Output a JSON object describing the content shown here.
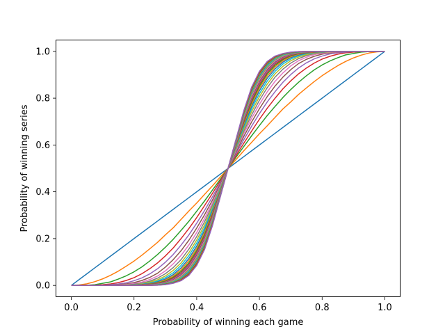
{
  "chart_data": {
    "type": "line",
    "title": "",
    "xlabel": "Probability of winning each game",
    "ylabel": "Probability of winning series",
    "xlim": [
      -0.05,
      1.05
    ],
    "ylim": [
      -0.05,
      1.05
    ],
    "x_ticks": [
      "0.0",
      "0.2",
      "0.4",
      "0.6",
      "0.8",
      "1.0"
    ],
    "y_ticks": [
      "0.0",
      "0.2",
      "0.4",
      "0.6",
      "0.8",
      "1.0"
    ],
    "grid": false,
    "legend": "none",
    "x": [
      0,
      0.025,
      0.05,
      0.075,
      0.1,
      0.125,
      0.15,
      0.175,
      0.2,
      0.225,
      0.25,
      0.275,
      0.3,
      0.325,
      0.35,
      0.375,
      0.4,
      0.425,
      0.45,
      0.475,
      0.5,
      0.525,
      0.55,
      0.575,
      0.6,
      0.625,
      0.65,
      0.675,
      0.7,
      0.725,
      0.75,
      0.775,
      0.8,
      0.825,
      0.85,
      0.875,
      0.9,
      0.925,
      0.95,
      0.975,
      1
    ],
    "series": [
      {
        "color": "#1f77b4",
        "values": [
          0,
          0.025,
          0.05,
          0.075,
          0.1,
          0.125,
          0.15,
          0.175,
          0.2,
          0.225,
          0.25,
          0.275,
          0.3,
          0.325,
          0.35,
          0.375,
          0.4,
          0.425,
          0.45,
          0.475,
          0.5,
          0.525,
          0.55,
          0.575,
          0.6,
          0.625,
          0.65,
          0.675,
          0.7,
          0.725,
          0.75,
          0.775,
          0.8,
          0.825,
          0.85,
          0.875,
          0.9,
          0.925,
          0.95,
          0.975,
          1
        ]
      },
      {
        "color": "#ff7f0e",
        "values": [
          0,
          0.002,
          0.007,
          0.016,
          0.028,
          0.043,
          0.061,
          0.082,
          0.104,
          0.129,
          0.156,
          0.184,
          0.216,
          0.246,
          0.282,
          0.318,
          0.352,
          0.389,
          0.425,
          0.463,
          0.5,
          0.537,
          0.575,
          0.611,
          0.648,
          0.682,
          0.718,
          0.754,
          0.784,
          0.816,
          0.844,
          0.871,
          0.896,
          0.918,
          0.939,
          0.957,
          0.972,
          0.984,
          0.993,
          0.998,
          1
        ]
      },
      {
        "color": "#2ca02c",
        "values": [
          0,
          0,
          0.001,
          0.003,
          0.009,
          0.015,
          0.027,
          0.041,
          0.058,
          0.079,
          0.104,
          0.132,
          0.163,
          0.197,
          0.235,
          0.274,
          0.317,
          0.361,
          0.407,
          0.453,
          0.5,
          0.547,
          0.593,
          0.639,
          0.683,
          0.726,
          0.765,
          0.803,
          0.837,
          0.868,
          0.896,
          0.921,
          0.942,
          0.959,
          0.973,
          0.985,
          0.991,
          0.997,
          0.999,
          1,
          1
        ]
      },
      {
        "color": "#d62728",
        "values": [
          0,
          0,
          0,
          0.001,
          0.003,
          0.006,
          0.012,
          0.021,
          0.033,
          0.05,
          0.071,
          0.096,
          0.126,
          0.16,
          0.2,
          0.243,
          0.29,
          0.341,
          0.393,
          0.446,
          0.5,
          0.554,
          0.607,
          0.659,
          0.71,
          0.757,
          0.8,
          0.84,
          0.874,
          0.904,
          0.929,
          0.95,
          0.967,
          0.979,
          0.988,
          0.994,
          0.997,
          0.999,
          1,
          1,
          1
        ]
      },
      {
        "color": "#9467bd",
        "values": [
          0,
          0,
          0,
          0,
          0.001,
          0.003,
          0.006,
          0.011,
          0.02,
          0.032,
          0.049,
          0.071,
          0.099,
          0.132,
          0.172,
          0.216,
          0.266,
          0.32,
          0.378,
          0.438,
          0.5,
          0.562,
          0.622,
          0.68,
          0.734,
          0.784,
          0.828,
          0.868,
          0.901,
          0.929,
          0.951,
          0.968,
          0.98,
          0.989,
          0.994,
          0.997,
          0.999,
          1,
          1,
          1,
          1
        ]
      },
      {
        "color": "#8c564b",
        "values": [
          0,
          0,
          0,
          0,
          0,
          0.001,
          0.003,
          0.006,
          0.012,
          0.021,
          0.034,
          0.052,
          0.078,
          0.11,
          0.148,
          0.193,
          0.245,
          0.302,
          0.364,
          0.431,
          0.5,
          0.569,
          0.636,
          0.698,
          0.755,
          0.807,
          0.852,
          0.89,
          0.922,
          0.948,
          0.966,
          0.979,
          0.988,
          0.994,
          0.997,
          0.999,
          1,
          1,
          1,
          1,
          1
        ]
      },
      {
        "color": "#e377c2",
        "values": [
          0,
          0,
          0,
          0,
          0,
          0.001,
          0.002,
          0.004,
          0.008,
          0.014,
          0.025,
          0.04,
          0.062,
          0.092,
          0.128,
          0.173,
          0.226,
          0.286,
          0.352,
          0.425,
          0.5,
          0.575,
          0.648,
          0.714,
          0.774,
          0.827,
          0.872,
          0.908,
          0.938,
          0.96,
          0.975,
          0.986,
          0.992,
          0.996,
          0.998,
          0.999,
          1,
          1,
          1,
          1,
          1
        ]
      },
      {
        "color": "#7f7f7f",
        "values": [
          0,
          0,
          0,
          0,
          0,
          0,
          0.001,
          0.002,
          0.005,
          0.01,
          0.018,
          0.031,
          0.05,
          0.076,
          0.11,
          0.155,
          0.209,
          0.272,
          0.342,
          0.419,
          0.5,
          0.581,
          0.658,
          0.728,
          0.791,
          0.845,
          0.89,
          0.924,
          0.95,
          0.969,
          0.982,
          0.99,
          0.995,
          0.998,
          0.999,
          1,
          1,
          1,
          1,
          1,
          1
        ]
      },
      {
        "color": "#bcbd22",
        "values": [
          0,
          0,
          0,
          0,
          0,
          0,
          0.001,
          0.002,
          0.003,
          0.007,
          0.014,
          0.024,
          0.04,
          0.064,
          0.096,
          0.14,
          0.194,
          0.258,
          0.333,
          0.414,
          0.5,
          0.586,
          0.667,
          0.742,
          0.806,
          0.86,
          0.904,
          0.936,
          0.96,
          0.976,
          0.986,
          0.993,
          0.997,
          0.998,
          0.999,
          1,
          1,
          1,
          1,
          1,
          1
        ]
      },
      {
        "color": "#17becf",
        "values": [
          0,
          0,
          0,
          0,
          0,
          0,
          0,
          0.001,
          0.002,
          0.005,
          0.01,
          0.019,
          0.033,
          0.054,
          0.085,
          0.127,
          0.181,
          0.246,
          0.325,
          0.41,
          0.5,
          0.59,
          0.675,
          0.754,
          0.819,
          0.873,
          0.915,
          0.946,
          0.967,
          0.981,
          0.99,
          0.995,
          0.998,
          0.999,
          1,
          1,
          1,
          1,
          1,
          1,
          1
        ]
      },
      {
        "color": "#1f77b4",
        "values": [
          0,
          0,
          0,
          0,
          0,
          0,
          0,
          0.001,
          0.002,
          0.004,
          0.008,
          0.015,
          0.027,
          0.046,
          0.075,
          0.115,
          0.168,
          0.235,
          0.317,
          0.406,
          0.5,
          0.594,
          0.683,
          0.765,
          0.832,
          0.885,
          0.925,
          0.954,
          0.973,
          0.985,
          0.992,
          0.996,
          0.998,
          0.999,
          1,
          1,
          1,
          1,
          1,
          1,
          1
        ]
      },
      {
        "color": "#ff7f0e",
        "values": [
          0,
          0,
          0,
          0,
          0,
          0,
          0,
          0,
          0.001,
          0.003,
          0.006,
          0.012,
          0.023,
          0.04,
          0.067,
          0.106,
          0.158,
          0.226,
          0.31,
          0.403,
          0.5,
          0.597,
          0.69,
          0.774,
          0.842,
          0.894,
          0.933,
          0.96,
          0.977,
          0.988,
          0.994,
          0.997,
          0.999,
          1,
          1,
          1,
          1,
          1,
          1,
          1,
          1
        ]
      },
      {
        "color": "#2ca02c",
        "values": [
          0,
          0,
          0,
          0,
          0,
          0,
          0,
          0,
          0.001,
          0.002,
          0.005,
          0.01,
          0.019,
          0.035,
          0.06,
          0.097,
          0.149,
          0.217,
          0.303,
          0.4,
          0.5,
          0.6,
          0.697,
          0.783,
          0.851,
          0.903,
          0.94,
          0.965,
          0.981,
          0.99,
          0.995,
          0.998,
          0.999,
          1,
          1,
          1,
          1,
          1,
          1,
          1,
          1
        ]
      },
      {
        "color": "#d62728",
        "values": [
          0,
          0,
          0,
          0,
          0,
          0,
          0,
          0,
          0.001,
          0.002,
          0.004,
          0.008,
          0.016,
          0.031,
          0.054,
          0.09,
          0.141,
          0.209,
          0.297,
          0.397,
          0.5,
          0.603,
          0.703,
          0.791,
          0.859,
          0.91,
          0.946,
          0.969,
          0.984,
          0.992,
          0.996,
          0.998,
          0.999,
          1,
          1,
          1,
          1,
          1,
          1,
          1,
          1
        ]
      },
      {
        "color": "#9467bd",
        "values": [
          0,
          0,
          0,
          0,
          0,
          0,
          0,
          0,
          0,
          0.001,
          0.003,
          0.007,
          0.014,
          0.027,
          0.049,
          0.084,
          0.134,
          0.203,
          0.292,
          0.394,
          0.5,
          0.606,
          0.708,
          0.797,
          0.866,
          0.916,
          0.951,
          0.973,
          0.986,
          0.993,
          0.997,
          0.999,
          1,
          1,
          1,
          1,
          1,
          1,
          1,
          1,
          1
        ]
      },
      {
        "color": "#8c564b",
        "values": [
          0,
          0,
          0,
          0,
          0,
          0,
          0,
          0,
          0,
          0.001,
          0.002,
          0.006,
          0.012,
          0.024,
          0.045,
          0.078,
          0.128,
          0.197,
          0.287,
          0.392,
          0.5,
          0.608,
          0.713,
          0.803,
          0.872,
          0.922,
          0.955,
          0.976,
          0.988,
          0.994,
          0.998,
          0.999,
          1,
          1,
          1,
          1,
          1,
          1,
          1,
          1,
          1
        ]
      },
      {
        "color": "#e377c2",
        "values": [
          0,
          0,
          0,
          0,
          0,
          0,
          0,
          0,
          0,
          0.001,
          0.002,
          0.005,
          0.01,
          0.021,
          0.041,
          0.073,
          0.122,
          0.191,
          0.283,
          0.39,
          0.5,
          0.61,
          0.717,
          0.809,
          0.878,
          0.927,
          0.959,
          0.979,
          0.99,
          0.995,
          0.998,
          0.999,
          1,
          1,
          1,
          1,
          1,
          1,
          1,
          1,
          1
        ]
      },
      {
        "color": "#7f7f7f",
        "values": [
          0,
          0,
          0,
          0,
          0,
          0,
          0,
          0,
          0,
          0.001,
          0.002,
          0.004,
          0.009,
          0.019,
          0.037,
          0.068,
          0.116,
          0.185,
          0.279,
          0.388,
          0.5,
          0.612,
          0.721,
          0.815,
          0.884,
          0.932,
          0.963,
          0.981,
          0.991,
          0.996,
          0.998,
          0.999,
          1,
          1,
          1,
          1,
          1,
          1,
          1,
          1,
          1
        ]
      },
      {
        "color": "#bcbd22",
        "values": [
          0,
          0,
          0,
          0,
          0,
          0,
          0,
          0,
          0,
          0,
          0.001,
          0.003,
          0.008,
          0.017,
          0.034,
          0.064,
          0.111,
          0.18,
          0.275,
          0.386,
          0.5,
          0.614,
          0.725,
          0.82,
          0.889,
          0.936,
          0.966,
          0.983,
          0.992,
          0.997,
          0.999,
          1,
          1,
          1,
          1,
          1,
          1,
          1,
          1,
          1,
          1
        ]
      },
      {
        "color": "#17becf",
        "values": [
          0,
          0,
          0,
          0,
          0,
          0,
          0,
          0,
          0,
          0,
          0.001,
          0.003,
          0.007,
          0.015,
          0.031,
          0.06,
          0.106,
          0.175,
          0.271,
          0.384,
          0.5,
          0.616,
          0.729,
          0.825,
          0.894,
          0.94,
          0.969,
          0.985,
          0.993,
          0.997,
          0.999,
          1,
          1,
          1,
          1,
          1,
          1,
          1,
          1,
          1,
          1
        ]
      },
      {
        "color": "#1f77b4",
        "values": [
          0,
          0,
          0,
          0,
          0,
          0,
          0,
          0,
          0,
          0,
          0.001,
          0.002,
          0.006,
          0.013,
          0.028,
          0.056,
          0.102,
          0.171,
          0.268,
          0.383,
          0.5,
          0.617,
          0.732,
          0.829,
          0.898,
          0.944,
          0.972,
          0.987,
          0.994,
          0.998,
          0.999,
          1,
          1,
          1,
          1,
          1,
          1,
          1,
          1,
          1,
          1
        ]
      },
      {
        "color": "#ff7f0e",
        "values": [
          0,
          0,
          0,
          0,
          0,
          0,
          0,
          0,
          0,
          0,
          0.001,
          0.002,
          0.005,
          0.012,
          0.026,
          0.052,
          0.097,
          0.166,
          0.264,
          0.381,
          0.5,
          0.619,
          0.736,
          0.834,
          0.903,
          0.948,
          0.974,
          0.988,
          0.995,
          0.998,
          0.999,
          1,
          1,
          1,
          1,
          1,
          1,
          1,
          1,
          1,
          1
        ]
      },
      {
        "color": "#2ca02c",
        "values": [
          0,
          0,
          0,
          0,
          0,
          0,
          0,
          0,
          0,
          0,
          0,
          0.002,
          0.005,
          0.011,
          0.024,
          0.049,
          0.093,
          0.162,
          0.261,
          0.38,
          0.5,
          0.62,
          0.739,
          0.838,
          0.907,
          0.951,
          0.976,
          0.989,
          0.995,
          0.998,
          1,
          1,
          1,
          1,
          1,
          1,
          1,
          1,
          1,
          1,
          1
        ]
      },
      {
        "color": "#d62728",
        "values": [
          0,
          0,
          0,
          0,
          0,
          0,
          0,
          0,
          0,
          0,
          0,
          0.001,
          0.004,
          0.01,
          0.022,
          0.046,
          0.089,
          0.157,
          0.258,
          0.378,
          0.5,
          0.622,
          0.742,
          0.843,
          0.911,
          0.954,
          0.978,
          0.99,
          0.996,
          0.999,
          1,
          1,
          1,
          1,
          1,
          1,
          1,
          1,
          1,
          1,
          1
        ]
      },
      {
        "color": "#9467bd",
        "values": [
          0,
          0,
          0,
          0,
          0,
          0,
          0,
          0,
          0,
          0,
          0,
          0.001,
          0.003,
          0.009,
          0.02,
          0.043,
          0.085,
          0.153,
          0.254,
          0.377,
          0.5,
          0.623,
          0.746,
          0.847,
          0.915,
          0.957,
          0.98,
          0.991,
          0.997,
          0.999,
          1,
          1,
          1,
          1,
          1,
          1,
          1,
          1,
          1,
          1,
          1
        ]
      }
    ]
  }
}
